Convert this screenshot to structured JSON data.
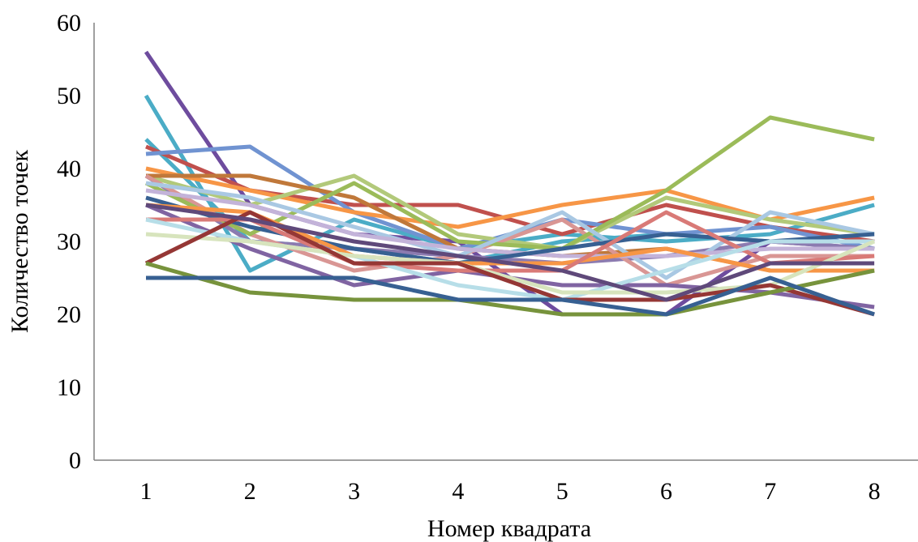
{
  "chart_data": {
    "type": "line",
    "title": "",
    "xlabel": "Номер квадрата",
    "ylabel": "Количество  точек",
    "categories": [
      "1",
      "2",
      "3",
      "4",
      "5",
      "6",
      "7",
      "8"
    ],
    "ylim": [
      0,
      60
    ],
    "yticks": [
      "0",
      "10",
      "20",
      "30",
      "40",
      "50",
      "60"
    ],
    "grid": false,
    "legend": "none",
    "series": [
      {
        "color": "#6E4C9E",
        "values": [
          56,
          35,
          31,
          30,
          20,
          20,
          30,
          29
        ]
      },
      {
        "color": "#4BACC6",
        "values": [
          50,
          26,
          33,
          29,
          31,
          30,
          31,
          35
        ]
      },
      {
        "color": "#4BACC6",
        "values": [
          44,
          30,
          29,
          27,
          30,
          31,
          30,
          30
        ]
      },
      {
        "color": "#C0504D",
        "values": [
          43,
          37,
          35,
          35,
          31,
          35,
          32,
          30
        ]
      },
      {
        "color": "#7093D1",
        "values": [
          42,
          43,
          34,
          29,
          33,
          31,
          32,
          29
        ]
      },
      {
        "color": "#F79646",
        "values": [
          40,
          37,
          34,
          32,
          35,
          37,
          33,
          36
        ]
      },
      {
        "color": "#B2C97A",
        "values": [
          39,
          35,
          39,
          31,
          29,
          36,
          33,
          31
        ]
      },
      {
        "color": "#C0783A",
        "values": [
          39,
          39,
          36,
          29,
          28,
          29,
          26,
          26
        ]
      },
      {
        "color": "#8C7BB0",
        "values": [
          39,
          30,
          29,
          28,
          27,
          28,
          30,
          29
        ]
      },
      {
        "color": "#D99694",
        "values": [
          39,
          31,
          26,
          28,
          33,
          24,
          28,
          28
        ]
      },
      {
        "color": "#9BBB59",
        "values": [
          38,
          31,
          38,
          30,
          29,
          37,
          47,
          44
        ]
      },
      {
        "color": "#A9C8E3",
        "values": [
          38,
          36,
          32,
          28,
          34,
          25,
          34,
          31
        ]
      },
      {
        "color": "#C3B3D9",
        "values": [
          37,
          35,
          31,
          29,
          28,
          28,
          29,
          29
        ]
      },
      {
        "color": "#376092",
        "values": [
          36,
          32,
          29,
          27,
          29,
          31,
          30,
          31
        ]
      },
      {
        "color": "#F79646",
        "values": [
          35,
          34,
          28,
          27,
          27,
          29,
          26,
          26
        ]
      },
      {
        "color": "#8064A2",
        "values": [
          35,
          29,
          24,
          26,
          24,
          24,
          23,
          21
        ]
      },
      {
        "color": "#D97A77",
        "values": [
          33,
          33,
          27,
          26,
          26,
          34,
          27,
          28
        ]
      },
      {
        "color": "#B7DEE8",
        "values": [
          33,
          30,
          28,
          24,
          22,
          26,
          30,
          30
        ]
      },
      {
        "color": "#D7E4BD",
        "values": [
          31,
          30,
          28,
          27,
          23,
          23,
          24,
          30
        ]
      },
      {
        "color": "#953735",
        "values": [
          27,
          34,
          27,
          27,
          22,
          22,
          24,
          20
        ]
      },
      {
        "color": "#77933C",
        "values": [
          27,
          23,
          22,
          22,
          20,
          20,
          23,
          26
        ]
      },
      {
        "color": "#376092",
        "values": [
          25,
          25,
          25,
          22,
          22,
          20,
          25,
          20
        ]
      },
      {
        "color": "#5F497A",
        "values": [
          35,
          33,
          30,
          28,
          26,
          22,
          27,
          27
        ]
      }
    ]
  }
}
